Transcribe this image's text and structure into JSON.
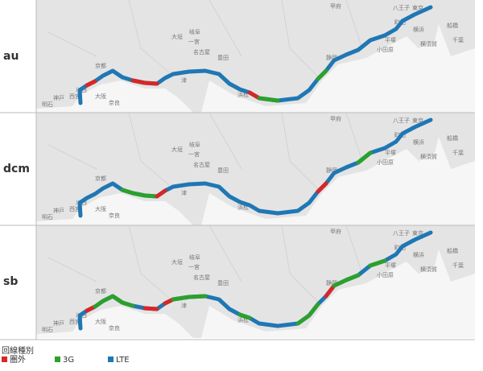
{
  "panels": [
    {
      "label": "au"
    },
    {
      "label": "dcm"
    },
    {
      "label": "sb"
    }
  ],
  "legend": {
    "title": "回線種別",
    "items": [
      {
        "label": "圏外",
        "color": "#d62728"
      },
      {
        "label": "3G",
        "color": "#2ca02c"
      },
      {
        "label": "LTE",
        "color": "#1f77b4"
      }
    ]
  },
  "places": [
    "東京",
    "八王子",
    "町田",
    "横浜",
    "横須賀",
    "平塚",
    "小田原",
    "千葉",
    "船橋",
    "甲府",
    "静岡",
    "浜松",
    "豊田",
    "名古屋",
    "岐阜",
    "一宮",
    "大垣",
    "津",
    "京都",
    "大阪",
    "神戸",
    "奈良",
    "明石",
    "西宮",
    "川西"
  ]
}
